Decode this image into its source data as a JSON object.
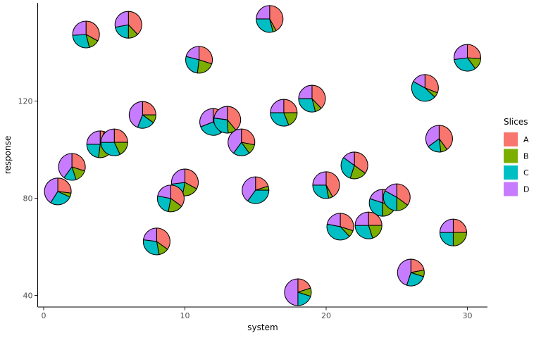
{
  "chart_data": {
    "type": "scatter-pie",
    "title": "",
    "xlabel": "system",
    "ylabel": "response",
    "x_ticks": [
      0,
      10,
      20,
      30
    ],
    "y_ticks": [
      40,
      80,
      120
    ],
    "xlim": [
      -0.5,
      31.5
    ],
    "ylim": [
      38,
      158
    ],
    "grid": false,
    "legend": {
      "title": "Slices",
      "position": "right",
      "entries": [
        {
          "label": "A",
          "color": "#F8766D"
        },
        {
          "label": "B",
          "color": "#7CAE00"
        },
        {
          "label": "C",
          "color": "#00BFC4"
        },
        {
          "label": "D",
          "color": "#C77CFF"
        }
      ]
    },
    "slice_order": [
      "A",
      "B",
      "C",
      "D"
    ],
    "pie_radius_px": 19,
    "points": [
      {
        "x": 1,
        "y": 82.8,
        "slices": {
          "A": 0.27,
          "B": 0.05,
          "C": 0.27,
          "D": 0.41
        }
      },
      {
        "x": 2,
        "y": 92.9,
        "slices": {
          "A": 0.3,
          "B": 0.15,
          "C": 0.15,
          "D": 0.4
        }
      },
      {
        "x": 3,
        "y": 147.4,
        "slices": {
          "A": 0.33,
          "B": 0.13,
          "C": 0.28,
          "D": 0.26
        }
      },
      {
        "x": 6,
        "y": 151.4,
        "slices": {
          "A": 0.38,
          "B": 0.12,
          "C": 0.22,
          "D": 0.28
        }
      },
      {
        "x": 7,
        "y": 114.3,
        "slices": {
          "A": 0.25,
          "B": 0.1,
          "C": 0.21,
          "D": 0.44
        }
      },
      {
        "x": 8,
        "y": 62.2,
        "slices": {
          "A": 0.35,
          "B": 0.12,
          "C": 0.3,
          "D": 0.23
        }
      },
      {
        "x": 10,
        "y": 86.5,
        "slices": {
          "A": 0.33,
          "B": 0.2,
          "C": 0.2,
          "D": 0.27
        }
      },
      {
        "x": 9,
        "y": 79.9,
        "slices": {
          "A": 0.35,
          "B": 0.18,
          "C": 0.25,
          "D": 0.22
        }
      },
      {
        "x": 4,
        "y": 102.2,
        "slices": {
          "A": 0.05,
          "B": 0.47,
          "C": 0.23,
          "D": 0.25
        }
      },
      {
        "x": 5,
        "y": 103.0,
        "slices": {
          "A": 0.25,
          "B": 0.18,
          "C": 0.32,
          "D": 0.25
        }
      },
      {
        "x": 11,
        "y": 137.0,
        "slices": {
          "A": 0.3,
          "B": 0.22,
          "C": 0.27,
          "D": 0.21
        }
      },
      {
        "x": 12,
        "y": 111.4,
        "slices": {
          "A": 0.22,
          "B": 0.18,
          "C": 0.29,
          "D": 0.31
        }
      },
      {
        "x": 13,
        "y": 112.3,
        "slices": {
          "A": 0.39,
          "B": 0.1,
          "C": 0.28,
          "D": 0.23
        }
      },
      {
        "x": 14,
        "y": 103.0,
        "slices": {
          "A": 0.28,
          "B": 0.12,
          "C": 0.2,
          "D": 0.4
        }
      },
      {
        "x": 15,
        "y": 83.3,
        "slices": {
          "A": 0.2,
          "B": 0.05,
          "C": 0.35,
          "D": 0.4
        }
      },
      {
        "x": 16,
        "y": 153.8,
        "slices": {
          "A": 0.42,
          "B": 0.04,
          "C": 0.29,
          "D": 0.25
        }
      },
      {
        "x": 17,
        "y": 115.2,
        "slices": {
          "A": 0.25,
          "B": 0.19,
          "C": 0.31,
          "D": 0.25
        }
      },
      {
        "x": 18,
        "y": 41.3,
        "slices": {
          "A": 0.2,
          "B": 0.1,
          "C": 0.2,
          "D": 0.5
        }
      },
      {
        "x": 19,
        "y": 121.0,
        "slices": {
          "A": 0.38,
          "B": 0.08,
          "C": 0.29,
          "D": 0.25
        }
      },
      {
        "x": 20,
        "y": 85.4,
        "slices": {
          "A": 0.42,
          "B": 0.05,
          "C": 0.28,
          "D": 0.25
        }
      },
      {
        "x": 21,
        "y": 68.3,
        "slices": {
          "A": 0.3,
          "B": 0.08,
          "C": 0.4,
          "D": 0.22
        }
      },
      {
        "x": 24,
        "y": 78.1,
        "slices": {
          "A": 0.28,
          "B": 0.22,
          "C": 0.3,
          "D": 0.2
        }
      },
      {
        "x": 25,
        "y": 80.4,
        "slices": {
          "A": 0.35,
          "B": 0.15,
          "C": 0.33,
          "D": 0.17
        }
      },
      {
        "x": 23,
        "y": 68.8,
        "slices": {
          "A": 0.25,
          "B": 0.2,
          "C": 0.3,
          "D": 0.25
        }
      },
      {
        "x": 22,
        "y": 93.5,
        "slices": {
          "A": 0.35,
          "B": 0.2,
          "C": 0.3,
          "D": 0.15
        }
      },
      {
        "x": 26,
        "y": 49.4,
        "slices": {
          "A": 0.22,
          "B": 0.08,
          "C": 0.25,
          "D": 0.45
        }
      },
      {
        "x": 27,
        "y": 125.4,
        "slices": {
          "A": 0.31,
          "B": 0.06,
          "C": 0.46,
          "D": 0.17
        }
      },
      {
        "x": 28,
        "y": 104.5,
        "slices": {
          "A": 0.4,
          "B": 0.08,
          "C": 0.17,
          "D": 0.35
        }
      },
      {
        "x": 29,
        "y": 65.9,
        "slices": {
          "A": 0.25,
          "B": 0.25,
          "C": 0.25,
          "D": 0.25
        }
      },
      {
        "x": 30,
        "y": 137.8,
        "slices": {
          "A": 0.26,
          "B": 0.14,
          "C": 0.33,
          "D": 0.27
        }
      }
    ]
  }
}
